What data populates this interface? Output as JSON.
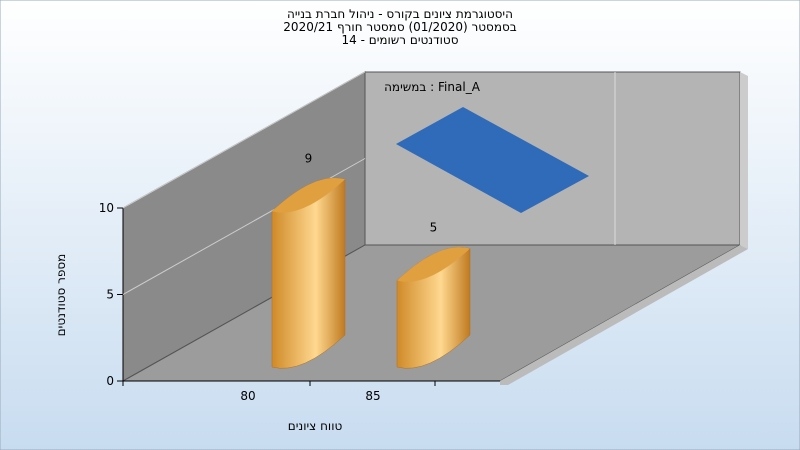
{
  "chart_data": {
    "type": "bar3d",
    "title": [
      "היסטוגרמת ציונים בקורס - ניהול חברת בנייה",
      "בסמסטר  (01/2020)  סמסטר חורף  2020/21",
      "סטודנטים רשומים - 14"
    ],
    "xlabel": "טווח ציונים",
    "ylabel": "מספר סטודנטים",
    "categories": [
      "80",
      "85"
    ],
    "series": [
      {
        "name": "במשימה : Final_A",
        "color": "#2f6bb8",
        "bar_color": "#e0a040",
        "values": [
          9,
          5
        ]
      }
    ],
    "ylim": [
      0,
      10
    ],
    "yticks": [
      0,
      5,
      10
    ],
    "grid": true
  }
}
